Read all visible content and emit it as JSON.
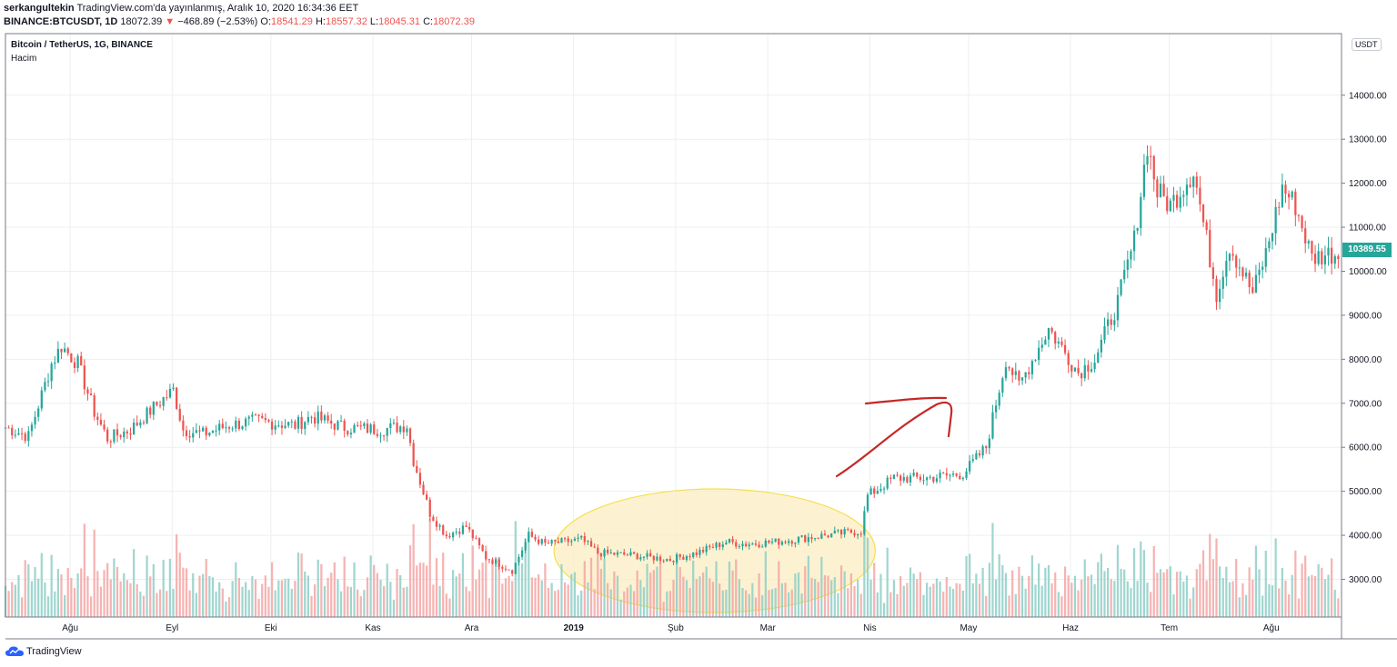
{
  "header": {
    "author": "serkangultekin",
    "published": "TradingView.com'da yayınlanmış, Aralık 10, 2020 16:34:36 EET",
    "symbol": "BINANCE:BTCUSDT, 1D",
    "last": "18072.39",
    "arrow": "▼",
    "change": "−468.89 (−2.53%)",
    "o_label": "O:",
    "o_value": "18541.29",
    "h_label": "H:",
    "h_value": "18557.32",
    "l_label": "L:",
    "l_value": "18045.31",
    "c_label": "C:",
    "c_value": "18072.39"
  },
  "legend": {
    "title": "Bitcoin / TetherUS, 1G, BINANCE",
    "volume_label": "Hacim"
  },
  "currency_badge": "USDT",
  "last_price_tag": "10389.55",
  "brand": "TradingView",
  "colors": {
    "up": "#26a69a",
    "down": "#ef5350",
    "volume_up": "#8fcfc7",
    "volume_down": "#f3a6a5",
    "highlight_fill": "#fbeec1",
    "highlight_stroke": "#f4e04d",
    "annotation": "#c62828",
    "grid": "#eceff2"
  },
  "chart_data": {
    "type": "candlestick",
    "title": "Bitcoin / TetherUS, 1G, BINANCE",
    "series": [
      {
        "name": "Bitcoin / TetherUS",
        "columns": [
          "date",
          "close"
        ],
        "values": [
          [
            "2018-07-14",
            6450
          ],
          [
            "2018-07-21",
            6250
          ],
          [
            "2018-07-28",
            7900
          ],
          [
            "2018-07-31",
            8300
          ],
          [
            "2018-08-05",
            7900
          ],
          [
            "2018-08-10",
            6800
          ],
          [
            "2018-08-14",
            6200
          ],
          [
            "2018-08-21",
            6400
          ],
          [
            "2018-08-28",
            6900
          ],
          [
            "2018-09-03",
            7300
          ],
          [
            "2018-09-06",
            6400
          ],
          [
            "2018-09-12",
            6300
          ],
          [
            "2018-09-20",
            6500
          ],
          [
            "2018-09-28",
            6600
          ],
          [
            "2018-10-10",
            6500
          ],
          [
            "2018-10-15",
            6700
          ],
          [
            "2018-10-25",
            6450
          ],
          [
            "2018-11-05",
            6400
          ],
          [
            "2018-11-13",
            6500
          ],
          [
            "2018-11-15",
            5700
          ],
          [
            "2018-11-20",
            4500
          ],
          [
            "2018-11-25",
            4000
          ],
          [
            "2018-12-01",
            4200
          ],
          [
            "2018-12-07",
            3500
          ],
          [
            "2018-12-15",
            3200
          ],
          [
            "2018-12-20",
            4000
          ],
          [
            "2018-12-25",
            3800
          ],
          [
            "2019-01-05",
            3900
          ],
          [
            "2019-01-10",
            3600
          ],
          [
            "2019-01-20",
            3550
          ],
          [
            "2019-02-01",
            3450
          ],
          [
            "2019-02-09",
            3600
          ],
          [
            "2019-02-18",
            3850
          ],
          [
            "2019-02-24",
            3800
          ],
          [
            "2019-03-05",
            3850
          ],
          [
            "2019-03-15",
            3950
          ],
          [
            "2019-03-31",
            4100
          ],
          [
            "2019-04-02",
            4900
          ],
          [
            "2019-04-10",
            5300
          ],
          [
            "2019-04-20",
            5300
          ],
          [
            "2019-05-01",
            5400
          ],
          [
            "2019-05-08",
            6000
          ],
          [
            "2019-05-14",
            8000
          ],
          [
            "2019-05-18",
            7400
          ],
          [
            "2019-05-27",
            8700
          ],
          [
            "2019-06-05",
            7700
          ],
          [
            "2019-06-10",
            8000
          ],
          [
            "2019-06-17",
            9300
          ],
          [
            "2019-06-22",
            10700
          ],
          [
            "2019-06-26",
            12900
          ],
          [
            "2019-06-29",
            11800
          ],
          [
            "2019-07-03",
            11500
          ],
          [
            "2019-07-10",
            12300
          ],
          [
            "2019-07-17",
            9500
          ],
          [
            "2019-07-21",
            10600
          ],
          [
            "2019-07-28",
            9500
          ],
          [
            "2019-08-01",
            10400
          ],
          [
            "2019-08-06",
            11900
          ],
          [
            "2019-08-10",
            11500
          ],
          [
            "2019-08-15",
            10300
          ],
          [
            "2019-08-20",
            10400
          ],
          [
            "2019-08-23",
            10390
          ]
        ]
      }
    ],
    "volume": {
      "label": "Hacim"
    },
    "x_tick_labels": [
      "Ağu",
      "Eyl",
      "Eki",
      "Kas",
      "Ara",
      "2019",
      "Şub",
      "Mar",
      "Nis",
      "May",
      "Haz",
      "Tem",
      "Ağu"
    ],
    "y_tick_labels": [
      "3000.00",
      "4000.00",
      "5000.00",
      "6000.00",
      "7000.00",
      "8000.00",
      "9000.00",
      "10000.00",
      "11000.00",
      "12000.00",
      "13000.00",
      "14000.00"
    ],
    "ylim": [
      2000,
      15000
    ],
    "last_price": 10389.55,
    "grid": true
  }
}
